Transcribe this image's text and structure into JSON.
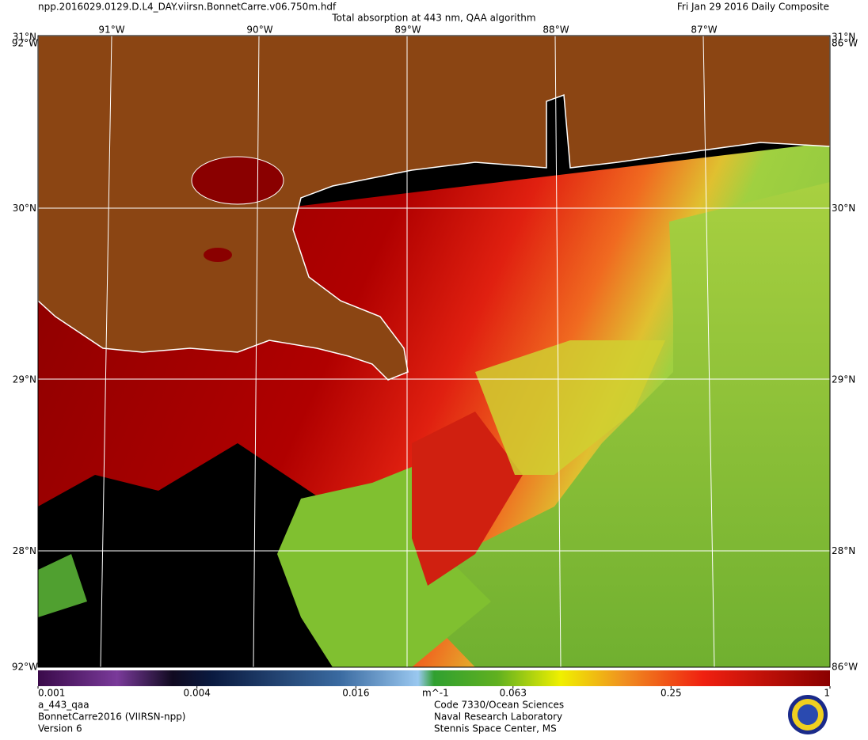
{
  "header": {
    "file": "npp.2016029.0129.D.L4_DAY.viirsn.BonnetCarre.v06.750m.hdf",
    "title": "Total absorption at 443 nm, QAA algorithm",
    "date": "Fri Jan 29 2016 Daily Composite"
  },
  "map": {
    "lon_labels": [
      "91°W",
      "90°W",
      "89°W",
      "88°W",
      "87°W"
    ],
    "lat_labels": [
      "31°N",
      "30°N",
      "29°N",
      "28°N"
    ],
    "corner_lon": [
      "92°W",
      "86°W"
    ]
  },
  "colorbar": {
    "scale": "log",
    "lim": [
      0.001,
      1
    ],
    "ticks": [
      0.001,
      0.004,
      0.016,
      0.063,
      0.25,
      1
    ],
    "unit": "m^-1"
  },
  "footer": {
    "left": [
      "a_443_qaa",
      "BonnetCarre2016 (VIIRSN-npp)",
      "Version 6"
    ],
    "right": [
      "Code 7330/Ocean Sciences",
      "Naval Research Laboratory",
      "Stennis Space Center, MS"
    ]
  }
}
